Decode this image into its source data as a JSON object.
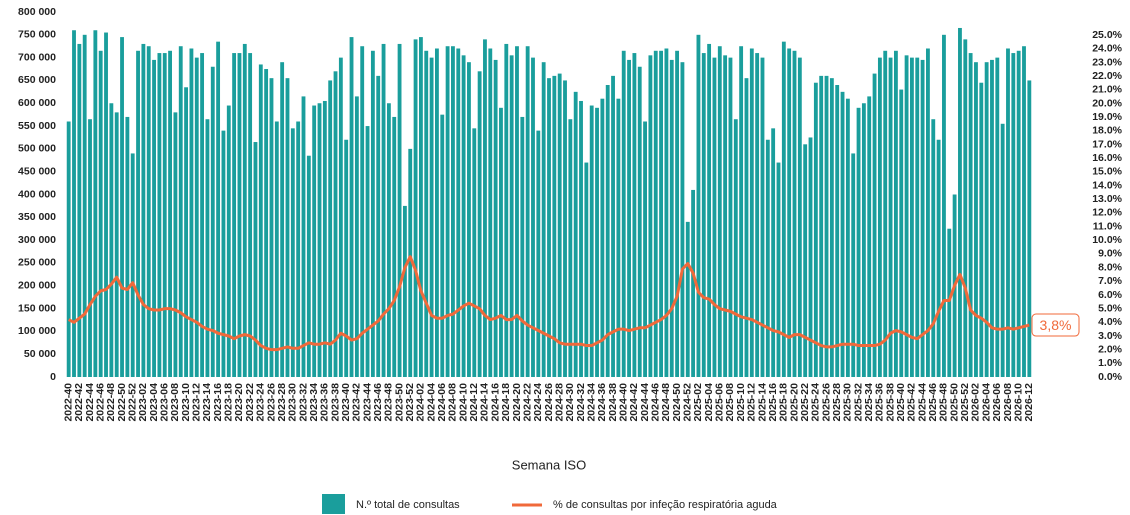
{
  "chart_data": {
    "type": "bar-line",
    "x_label": "Semana ISO",
    "annotation": "3,8%",
    "categories": [
      "2022-40",
      null,
      "2022-42",
      null,
      "2022-44",
      null,
      "2022-46",
      null,
      "2022-48",
      null,
      "2022-50",
      null,
      "2022-52",
      null,
      "2023-02",
      null,
      "2023-04",
      null,
      "2023-06",
      null,
      "2023-08",
      null,
      "2023-10",
      null,
      "2023-12",
      null,
      "2023-14",
      null,
      "2023-16",
      null,
      "2023-18",
      null,
      "2023-20",
      null,
      "2023-22",
      null,
      "2023-24",
      null,
      "2023-26",
      null,
      "2023-28",
      null,
      "2023-30",
      null,
      "2023-32",
      null,
      "2023-34",
      null,
      "2023-36",
      null,
      "2023-38",
      null,
      "2023-40",
      null,
      "2023-42",
      null,
      "2023-44",
      null,
      "2023-46",
      null,
      "2023-48",
      null,
      "2023-50",
      null,
      "2023-52",
      null,
      "2024-02",
      null,
      "2024-04",
      null,
      "2024-06",
      null,
      "2024-08",
      null,
      "2024-10",
      null,
      "2024-12",
      null,
      "2024-14",
      null,
      "2024-16",
      null,
      "2024-18",
      null,
      "2024-20",
      null,
      "2024-22",
      null,
      "2024-24",
      null,
      "2024-26",
      null,
      "2024-28",
      null,
      "2024-30",
      null,
      "2024-32",
      null,
      "2024-34",
      null,
      "2024-36",
      null,
      "2024-38",
      null,
      "2024-40",
      null,
      "2024-42",
      null,
      "2024-44",
      null,
      "2024-46",
      null,
      "2024-48",
      null,
      "2024-50",
      null,
      "2024-52",
      null,
      "2025-02",
      null,
      "2025-04",
      null,
      "2025-06",
      null,
      "2025-08",
      null,
      "2025-10",
      null,
      "2025-12",
      null,
      "2025-14",
      null,
      "2025-16",
      null,
      "2025-18",
      null,
      "2025-20",
      null,
      "2025-22",
      null,
      "2025-24",
      null,
      "2025-26",
      null,
      "2025-28",
      null,
      "2025-30",
      null,
      "2025-32",
      null,
      "2025-34",
      null,
      "2025-36",
      null,
      "2025-38",
      null,
      "2025-40",
      null,
      "2025-42",
      null,
      "2025-44",
      null,
      "2025-46",
      null,
      "2025-48",
      null,
      "2025-50",
      null,
      "2025-52",
      null,
      "2026-02",
      null,
      "2026-04",
      null,
      "2026-06",
      null,
      "2026-08",
      null,
      "2026-10",
      null,
      "2026-12"
    ],
    "series": [
      {
        "name": "N.º total de consultas",
        "type": "bar",
        "color": "#1a9e9c",
        "values": [
          560000,
          760000,
          730000,
          750000,
          565000,
          760000,
          715000,
          755000,
          600000,
          580000,
          745000,
          570000,
          490000,
          715000,
          730000,
          725000,
          695000,
          710000,
          710000,
          715000,
          580000,
          725000,
          635000,
          720000,
          700000,
          710000,
          565000,
          680000,
          735000,
          540000,
          595000,
          710000,
          710000,
          730000,
          710000,
          515000,
          685000,
          675000,
          655000,
          560000,
          690000,
          655000,
          545000,
          560000,
          615000,
          485000,
          595000,
          600000,
          605000,
          650000,
          670000,
          700000,
          520000,
          745000,
          615000,
          725000,
          550000,
          715000,
          660000,
          730000,
          600000,
          570000,
          730000,
          375000,
          500000,
          740000,
          745000,
          715000,
          700000,
          720000,
          575000,
          725000,
          725000,
          720000,
          705000,
          690000,
          545000,
          670000,
          740000,
          720000,
          695000,
          590000,
          730000,
          705000,
          725000,
          570000,
          725000,
          700000,
          540000,
          690000,
          655000,
          660000,
          665000,
          650000,
          565000,
          625000,
          605000,
          470000,
          595000,
          590000,
          610000,
          640000,
          660000,
          610000,
          715000,
          695000,
          710000,
          680000,
          560000,
          705000,
          715000,
          715000,
          720000,
          695000,
          715000,
          690000,
          340000,
          410000,
          750000,
          710000,
          730000,
          700000,
          725000,
          705000,
          700000,
          565000,
          725000,
          655000,
          720000,
          710000,
          700000,
          520000,
          545000,
          470000,
          735000,
          720000,
          715000,
          700000,
          510000,
          525000,
          645000,
          660000,
          660000,
          655000,
          640000,
          625000,
          610000,
          490000,
          590000,
          600000,
          615000,
          665000,
          700000,
          715000,
          700000,
          715000,
          630000,
          705000,
          700000,
          700000,
          695000,
          720000,
          565000,
          520000,
          750000,
          325000,
          400000,
          765000,
          740000,
          710000,
          690000,
          645000,
          690000,
          695000,
          700000,
          555000,
          720000,
          710000,
          715000,
          725000,
          650000
        ]
      },
      {
        "name": "% de consultas por infeção respiratória aguda",
        "type": "line",
        "axis": "y2",
        "color": "#f0693a",
        "values": [
          4.2,
          4.0,
          4.3,
          4.6,
          5.3,
          5.9,
          6.3,
          6.4,
          6.8,
          7.3,
          6.5,
          6.4,
          6.9,
          6.0,
          5.3,
          5.0,
          4.9,
          4.9,
          5.0,
          5.0,
          4.9,
          4.7,
          4.4,
          4.2,
          4.0,
          3.7,
          3.5,
          3.4,
          3.2,
          3.1,
          3.0,
          2.8,
          3.0,
          3.1,
          3.0,
          2.7,
          2.3,
          2.1,
          2.0,
          2.0,
          2.1,
          2.2,
          2.1,
          2.1,
          2.3,
          2.5,
          2.4,
          2.4,
          2.5,
          2.4,
          2.7,
          3.2,
          3.0,
          2.7,
          2.8,
          3.2,
          3.5,
          3.8,
          4.1,
          4.6,
          5.0,
          5.6,
          6.6,
          8.0,
          8.8,
          7.8,
          6.3,
          5.4,
          4.5,
          4.3,
          4.3,
          4.5,
          4.6,
          4.9,
          5.2,
          5.4,
          5.2,
          5.0,
          4.5,
          4.2,
          4.3,
          4.5,
          4.2,
          4.2,
          4.5,
          4.1,
          3.8,
          3.6,
          3.4,
          3.2,
          3.0,
          2.8,
          2.5,
          2.4,
          2.4,
          2.4,
          2.4,
          2.3,
          2.3,
          2.5,
          2.7,
          3.1,
          3.3,
          3.5,
          3.5,
          3.4,
          3.5,
          3.6,
          3.6,
          3.8,
          4.0,
          4.2,
          4.5,
          5.0,
          5.9,
          7.9,
          8.3,
          7.6,
          6.2,
          5.8,
          5.7,
          5.3,
          5.0,
          4.9,
          4.8,
          4.6,
          4.4,
          4.3,
          4.2,
          4.0,
          3.8,
          3.6,
          3.4,
          3.3,
          3.1,
          2.9,
          3.1,
          3.1,
          2.9,
          2.7,
          2.5,
          2.3,
          2.2,
          2.2,
          2.3,
          2.4,
          2.4,
          2.4,
          2.3,
          2.3,
          2.3,
          2.3,
          2.4,
          2.7,
          3.2,
          3.4,
          3.3,
          3.1,
          2.9,
          2.8,
          3.1,
          3.4,
          3.9,
          4.8,
          5.6,
          5.6,
          6.7,
          7.5,
          6.5,
          4.9,
          4.5,
          4.3,
          4.0,
          3.6,
          3.5,
          3.5,
          3.6,
          3.5,
          3.6,
          3.7,
          3.8
        ]
      }
    ],
    "ylim": [
      0,
      800000
    ],
    "yticks": [
      0,
      {
        "value": 50000,
        "label": "50 000"
      },
      {
        "value": 100000,
        "label": "100 000"
      },
      {
        "value": 150000,
        "label": "150 000"
      },
      {
        "value": 200000,
        "label": "200 000"
      },
      {
        "value": 250000,
        "label": "250 000"
      },
      {
        "value": 300000,
        "label": "300 000"
      },
      {
        "value": 350000,
        "label": "350 000"
      },
      {
        "value": 400000,
        "label": "400 000"
      },
      {
        "value": 450000,
        "label": "450 000"
      },
      {
        "value": 500000,
        "label": "500 000"
      },
      {
        "value": 550000,
        "label": "550 000"
      },
      {
        "value": 600000,
        "label": "600 000"
      },
      {
        "value": 650000,
        "label": "650 000"
      },
      {
        "value": 700000,
        "label": "700 000"
      },
      {
        "value": 750000,
        "label": "750 000"
      },
      {
        "value": 800000,
        "label": "800 000"
      }
    ],
    "y2lim": [
      0,
      26.7
    ],
    "y2ticks": [
      {
        "value": 0,
        "label": "0.0%"
      },
      {
        "value": 1,
        "label": "1.0%"
      },
      {
        "value": 2,
        "label": "2.0%"
      },
      {
        "value": 3,
        "label": "3.0%"
      },
      {
        "value": 4,
        "label": "4.0%"
      },
      {
        "value": 5,
        "label": "5.0%"
      },
      {
        "value": 6,
        "label": "6.0%"
      },
      {
        "value": 7,
        "label": "7.0%"
      },
      {
        "value": 8,
        "label": "8.0%"
      },
      {
        "value": 9,
        "label": "9.0%"
      },
      {
        "value": 10,
        "label": "10.0%"
      },
      {
        "value": 11,
        "label": "11.0%"
      },
      {
        "value": 12,
        "label": "12.0%"
      },
      {
        "value": 13,
        "label": "13.0%"
      },
      {
        "value": 14,
        "label": "14.0%"
      },
      {
        "value": 15,
        "label": "15.0%"
      },
      {
        "value": 16,
        "label": "16.0%"
      },
      {
        "value": 17,
        "label": "17.0%"
      },
      {
        "value": 18,
        "label": "18.0%"
      },
      {
        "value": 19,
        "label": "19.0%"
      },
      {
        "value": 20,
        "label": "20.0%"
      },
      {
        "value": 21,
        "label": "21.0%"
      },
      {
        "value": 22,
        "label": "22.0%"
      },
      {
        "value": 23,
        "label": "23.0%"
      },
      {
        "value": 24,
        "label": "24.0%"
      },
      {
        "value": 25,
        "label": "25.0%"
      }
    ]
  }
}
